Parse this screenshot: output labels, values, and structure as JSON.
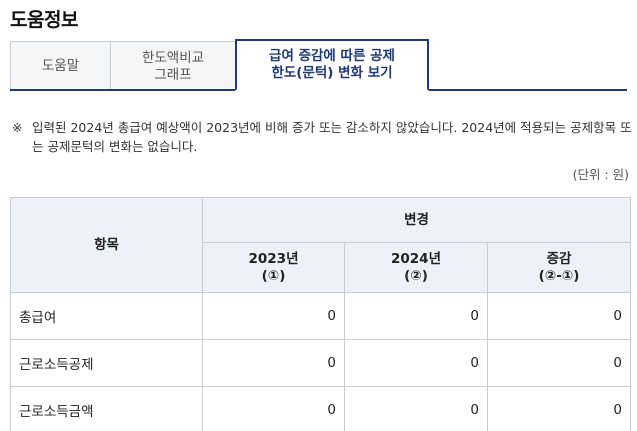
{
  "page_title": "도움정보",
  "tabs": [
    {
      "line1": "도움말",
      "line2": ""
    },
    {
      "line1": "한도액비교",
      "line2": "그래프"
    },
    {
      "line1": "급여 증감에 따른 공제",
      "line2": "한도(문턱) 변화 보기"
    }
  ],
  "notice": {
    "mark": "※",
    "text": "입력된 2024년 총급여 예상액이 2023년에 비해 증가 또는 감소하지 않았습니다. 2024년에 적용되는 공제항목 또는 공제문턱의 변화는 없습니다."
  },
  "unit_label": "(단위 : 원)",
  "table": {
    "item_header": "항목",
    "change_header": "변경",
    "col_2023": {
      "line1": "2023년",
      "line2": "(①)"
    },
    "col_2024": {
      "line1": "2024년",
      "line2": "(②)"
    },
    "col_diff": {
      "line1": "증감",
      "line2": "(②-①)"
    },
    "rows": [
      {
        "label": "총급여",
        "v2023": "0",
        "v2024": "0",
        "diff": "0"
      },
      {
        "label": "근로소득공제",
        "v2023": "0",
        "v2024": "0",
        "diff": "0"
      },
      {
        "label": "근로소득금액",
        "v2023": "0",
        "v2024": "0",
        "diff": "0"
      }
    ]
  }
}
